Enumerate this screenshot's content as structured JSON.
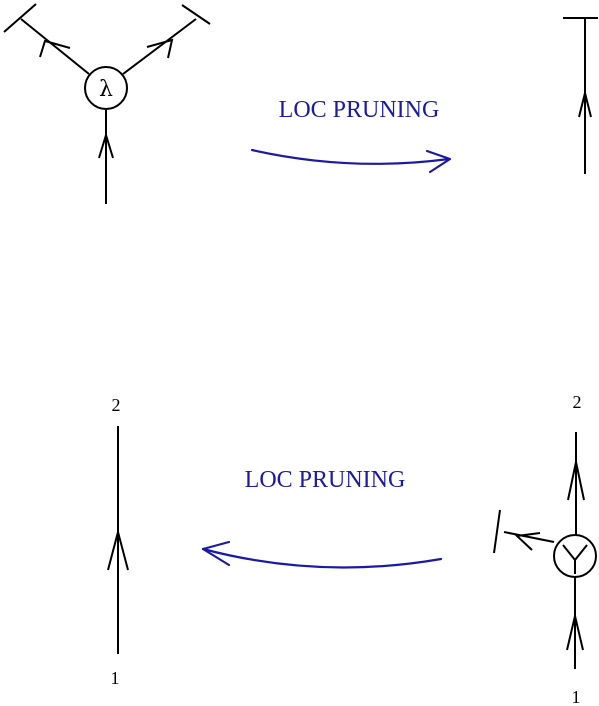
{
  "colors": {
    "accent": "#1a1aa6",
    "ink": "#000000"
  },
  "top": {
    "vertex_label": "λ",
    "pruning_label": "LOC  PRUNING"
  },
  "bottom": {
    "pruning_label": "LOC  PRUNING",
    "left_top_label": "2",
    "left_bottom_label": "1",
    "right_top_label": "2",
    "right_bottom_label": "1",
    "vertex_symbol": "Y"
  }
}
